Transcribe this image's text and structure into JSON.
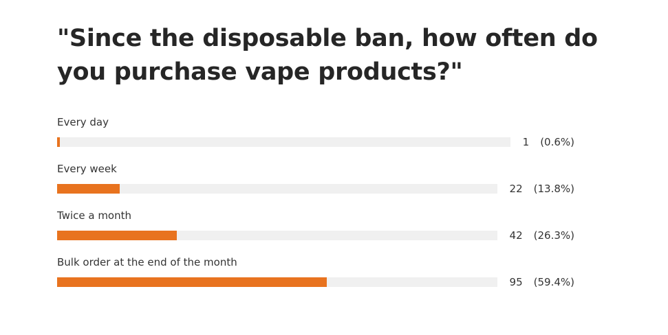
{
  "title": "\"Since the disposable ban, how often do you purchase vape products?\"",
  "colors": {
    "bar_fill": "#e8731f",
    "bar_track": "#f0f0f0",
    "text": "#333333"
  },
  "chart_data": {
    "type": "bar",
    "orientation": "horizontal",
    "title": "\"Since the disposable ban, how often do you purchase vape products?\"",
    "categories": [
      "Every day",
      "Every week",
      "Twice a month",
      "Bulk order at the end of the month"
    ],
    "values": [
      1,
      22,
      42,
      95
    ],
    "percent_labels": [
      "(0.6%)",
      "(13.8%)",
      "(26.3%)",
      "(59.4%)"
    ],
    "percentages": [
      0.6,
      13.8,
      26.3,
      59.4
    ],
    "grid": false,
    "legend": "none"
  }
}
